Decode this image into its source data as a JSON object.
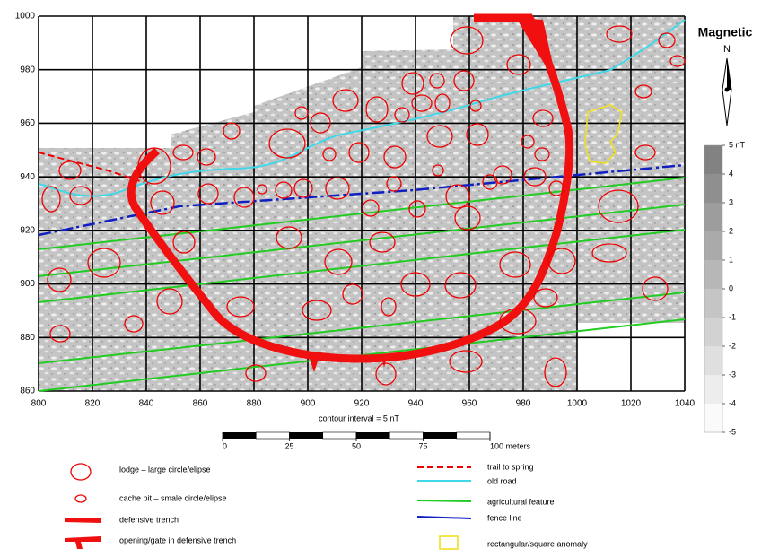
{
  "map": {
    "title": "Magnetic",
    "north": "N",
    "xlim": [
      800,
      1040
    ],
    "ylim": [
      860,
      1000
    ],
    "xticks": [
      800,
      820,
      840,
      860,
      880,
      900,
      920,
      940,
      960,
      980,
      1000,
      1020,
      1040
    ],
    "yticks": [
      860,
      880,
      900,
      920,
      940,
      960,
      980,
      1000
    ],
    "colorbar": {
      "lim": [
        -5,
        5
      ],
      "ticks": [
        {
          "value": 5,
          "label": "5 nT"
        },
        4,
        3,
        2,
        1,
        0,
        -1,
        -2,
        -3,
        -4,
        -5
      ]
    },
    "contour_note": "contour interval = 5 nT",
    "scale_bar": {
      "lim": [
        0,
        100
      ],
      "ticks": [
        0,
        25,
        50,
        75,
        {
          "value": 100,
          "label": "100 meters"
        }
      ]
    },
    "legend": [
      "lodge – large circle/elipse",
      "cache pit – smale circle/elipse",
      "defensive trench",
      "opening/gate in defensive trench",
      "trail to spring",
      "old road",
      "agricultural feature",
      "fence line",
      "rectangular/square anomaly"
    ]
  }
}
